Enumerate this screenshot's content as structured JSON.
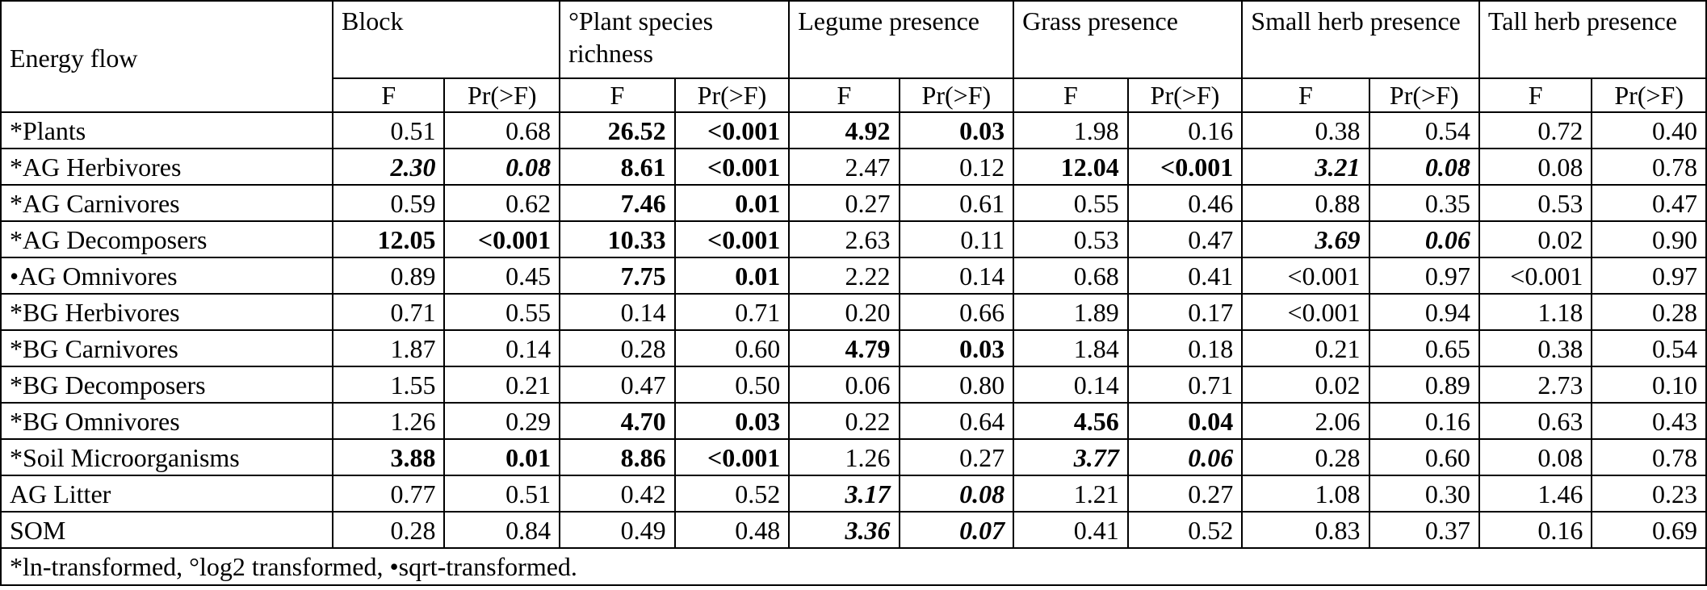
{
  "table": {
    "row_header_title": "Energy flow",
    "groups": [
      "Block",
      "°Plant species richness",
      "Legume presence",
      "Grass presence",
      "Small herb presence",
      "Tall herb presence"
    ],
    "subheaders": [
      "F",
      "Pr(>F)"
    ],
    "rows": [
      {
        "label": "*Plants",
        "cells": [
          {
            "v": "0.51",
            "s": ""
          },
          {
            "v": "0.68",
            "s": ""
          },
          {
            "v": "26.52",
            "s": "b"
          },
          {
            "v": "<0.001",
            "s": "b"
          },
          {
            "v": "4.92",
            "s": "b"
          },
          {
            "v": "0.03",
            "s": "b"
          },
          {
            "v": "1.98",
            "s": ""
          },
          {
            "v": "0.16",
            "s": ""
          },
          {
            "v": "0.38",
            "s": ""
          },
          {
            "v": "0.54",
            "s": ""
          },
          {
            "v": "0.72",
            "s": ""
          },
          {
            "v": "0.40",
            "s": ""
          }
        ]
      },
      {
        "label": "*AG Herbivores",
        "cells": [
          {
            "v": "2.30",
            "s": "bi"
          },
          {
            "v": "0.08",
            "s": "bi"
          },
          {
            "v": "8.61",
            "s": "b"
          },
          {
            "v": "<0.001",
            "s": "b"
          },
          {
            "v": "2.47",
            "s": ""
          },
          {
            "v": "0.12",
            "s": ""
          },
          {
            "v": "12.04",
            "s": "b"
          },
          {
            "v": "<0.001",
            "s": "b"
          },
          {
            "v": "3.21",
            "s": "bi"
          },
          {
            "v": "0.08",
            "s": "bi"
          },
          {
            "v": "0.08",
            "s": ""
          },
          {
            "v": "0.78",
            "s": ""
          }
        ]
      },
      {
        "label": "*AG Carnivores",
        "cells": [
          {
            "v": "0.59",
            "s": ""
          },
          {
            "v": "0.62",
            "s": ""
          },
          {
            "v": "7.46",
            "s": "b"
          },
          {
            "v": "0.01",
            "s": "b"
          },
          {
            "v": "0.27",
            "s": ""
          },
          {
            "v": "0.61",
            "s": ""
          },
          {
            "v": "0.55",
            "s": ""
          },
          {
            "v": "0.46",
            "s": ""
          },
          {
            "v": "0.88",
            "s": ""
          },
          {
            "v": "0.35",
            "s": ""
          },
          {
            "v": "0.53",
            "s": ""
          },
          {
            "v": "0.47",
            "s": ""
          }
        ]
      },
      {
        "label": "*AG Decomposers",
        "cells": [
          {
            "v": "12.05",
            "s": "b"
          },
          {
            "v": "<0.001",
            "s": "b"
          },
          {
            "v": "10.33",
            "s": "b"
          },
          {
            "v": "<0.001",
            "s": "b"
          },
          {
            "v": "2.63",
            "s": ""
          },
          {
            "v": "0.11",
            "s": ""
          },
          {
            "v": "0.53",
            "s": ""
          },
          {
            "v": "0.47",
            "s": ""
          },
          {
            "v": "3.69",
            "s": "bi"
          },
          {
            "v": "0.06",
            "s": "bi"
          },
          {
            "v": "0.02",
            "s": ""
          },
          {
            "v": "0.90",
            "s": ""
          }
        ]
      },
      {
        "label": "•AG Omnivores",
        "cells": [
          {
            "v": "0.89",
            "s": ""
          },
          {
            "v": "0.45",
            "s": ""
          },
          {
            "v": "7.75",
            "s": "b"
          },
          {
            "v": "0.01",
            "s": "b"
          },
          {
            "v": "2.22",
            "s": ""
          },
          {
            "v": "0.14",
            "s": ""
          },
          {
            "v": "0.68",
            "s": ""
          },
          {
            "v": "0.41",
            "s": ""
          },
          {
            "v": "<0.001",
            "s": ""
          },
          {
            "v": "0.97",
            "s": ""
          },
          {
            "v": "<0.001",
            "s": ""
          },
          {
            "v": "0.97",
            "s": ""
          }
        ]
      },
      {
        "label": "*BG Herbivores",
        "cells": [
          {
            "v": "0.71",
            "s": ""
          },
          {
            "v": "0.55",
            "s": ""
          },
          {
            "v": "0.14",
            "s": ""
          },
          {
            "v": "0.71",
            "s": ""
          },
          {
            "v": "0.20",
            "s": ""
          },
          {
            "v": "0.66",
            "s": ""
          },
          {
            "v": "1.89",
            "s": ""
          },
          {
            "v": "0.17",
            "s": ""
          },
          {
            "v": "<0.001",
            "s": ""
          },
          {
            "v": "0.94",
            "s": ""
          },
          {
            "v": "1.18",
            "s": ""
          },
          {
            "v": "0.28",
            "s": ""
          }
        ]
      },
      {
        "label": "*BG Carnivores",
        "cells": [
          {
            "v": "1.87",
            "s": ""
          },
          {
            "v": "0.14",
            "s": ""
          },
          {
            "v": "0.28",
            "s": ""
          },
          {
            "v": "0.60",
            "s": ""
          },
          {
            "v": "4.79",
            "s": "b"
          },
          {
            "v": "0.03",
            "s": "b"
          },
          {
            "v": "1.84",
            "s": ""
          },
          {
            "v": "0.18",
            "s": ""
          },
          {
            "v": "0.21",
            "s": ""
          },
          {
            "v": "0.65",
            "s": ""
          },
          {
            "v": "0.38",
            "s": ""
          },
          {
            "v": "0.54",
            "s": ""
          }
        ]
      },
      {
        "label": "*BG Decomposers",
        "cells": [
          {
            "v": "1.55",
            "s": ""
          },
          {
            "v": "0.21",
            "s": ""
          },
          {
            "v": "0.47",
            "s": ""
          },
          {
            "v": "0.50",
            "s": ""
          },
          {
            "v": "0.06",
            "s": ""
          },
          {
            "v": "0.80",
            "s": ""
          },
          {
            "v": "0.14",
            "s": ""
          },
          {
            "v": "0.71",
            "s": ""
          },
          {
            "v": "0.02",
            "s": ""
          },
          {
            "v": "0.89",
            "s": ""
          },
          {
            "v": "2.73",
            "s": ""
          },
          {
            "v": "0.10",
            "s": ""
          }
        ]
      },
      {
        "label": "*BG Omnivores",
        "cells": [
          {
            "v": "1.26",
            "s": ""
          },
          {
            "v": "0.29",
            "s": ""
          },
          {
            "v": "4.70",
            "s": "b"
          },
          {
            "v": "0.03",
            "s": "b"
          },
          {
            "v": "0.22",
            "s": ""
          },
          {
            "v": "0.64",
            "s": ""
          },
          {
            "v": "4.56",
            "s": "b"
          },
          {
            "v": "0.04",
            "s": "b"
          },
          {
            "v": "2.06",
            "s": ""
          },
          {
            "v": "0.16",
            "s": ""
          },
          {
            "v": "0.63",
            "s": ""
          },
          {
            "v": "0.43",
            "s": ""
          }
        ]
      },
      {
        "label": "*Soil Microorganisms",
        "cells": [
          {
            "v": "3.88",
            "s": "b"
          },
          {
            "v": "0.01",
            "s": "b"
          },
          {
            "v": "8.86",
            "s": "b"
          },
          {
            "v": "<0.001",
            "s": "b"
          },
          {
            "v": "1.26",
            "s": ""
          },
          {
            "v": "0.27",
            "s": ""
          },
          {
            "v": "3.77",
            "s": "bi"
          },
          {
            "v": "0.06",
            "s": "bi"
          },
          {
            "v": "0.28",
            "s": ""
          },
          {
            "v": "0.60",
            "s": ""
          },
          {
            "v": "0.08",
            "s": ""
          },
          {
            "v": "0.78",
            "s": ""
          }
        ]
      },
      {
        "label": "AG Litter",
        "cells": [
          {
            "v": "0.77",
            "s": ""
          },
          {
            "v": "0.51",
            "s": ""
          },
          {
            "v": "0.42",
            "s": ""
          },
          {
            "v": "0.52",
            "s": ""
          },
          {
            "v": "3.17",
            "s": "bi"
          },
          {
            "v": "0.08",
            "s": "bi"
          },
          {
            "v": "1.21",
            "s": ""
          },
          {
            "v": "0.27",
            "s": ""
          },
          {
            "v": "1.08",
            "s": ""
          },
          {
            "v": "0.30",
            "s": ""
          },
          {
            "v": "1.46",
            "s": ""
          },
          {
            "v": "0.23",
            "s": ""
          }
        ]
      },
      {
        "label": "SOM",
        "cells": [
          {
            "v": "0.28",
            "s": ""
          },
          {
            "v": "0.84",
            "s": ""
          },
          {
            "v": "0.49",
            "s": ""
          },
          {
            "v": "0.48",
            "s": ""
          },
          {
            "v": "3.36",
            "s": "bi"
          },
          {
            "v": "0.07",
            "s": "bi"
          },
          {
            "v": "0.41",
            "s": ""
          },
          {
            "v": "0.52",
            "s": ""
          },
          {
            "v": "0.83",
            "s": ""
          },
          {
            "v": "0.37",
            "s": ""
          },
          {
            "v": "0.16",
            "s": ""
          },
          {
            "v": "0.69",
            "s": ""
          }
        ]
      }
    ],
    "footnote": "*ln-transformed, °log2 transformed, •sqrt-transformed."
  }
}
